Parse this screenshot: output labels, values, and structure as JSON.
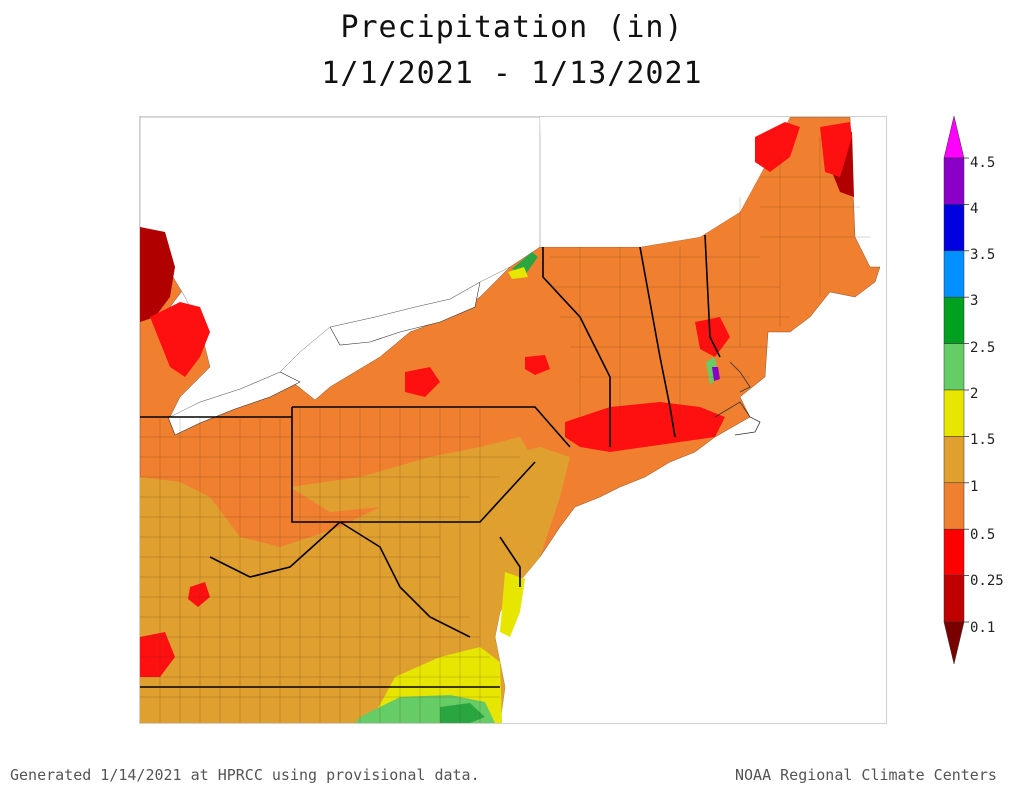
{
  "title": {
    "line1": "Precipitation (in)",
    "line2": "1/1/2021 - 1/13/2021"
  },
  "legend": {
    "labels": [
      "4.5",
      "4",
      "3.5",
      "3",
      "2.5",
      "2",
      "1.5",
      "1",
      "0.5",
      "0.25",
      "0.1"
    ],
    "colors": [
      "#ff00ff",
      "#8b00c8",
      "#0000e0",
      "#0090ff",
      "#00a020",
      "#66cc66",
      "#e6e600",
      "#e0a030",
      "#f08030",
      "#ff0000",
      "#c00000",
      "#7a0000"
    ]
  },
  "footer": {
    "left": "Generated 1/14/2021 at HPRCC using provisional data.",
    "right": "NOAA Regional Climate Centers"
  },
  "map_colors": {
    "lake": "#ffffff",
    "orange": "#f08030",
    "tan": "#e0a030",
    "red": "#ff1010",
    "darkred": "#b00000",
    "yellow": "#e6e600",
    "lightgreen": "#66cc66",
    "green": "#2aa640",
    "purple": "#8b00c8"
  }
}
